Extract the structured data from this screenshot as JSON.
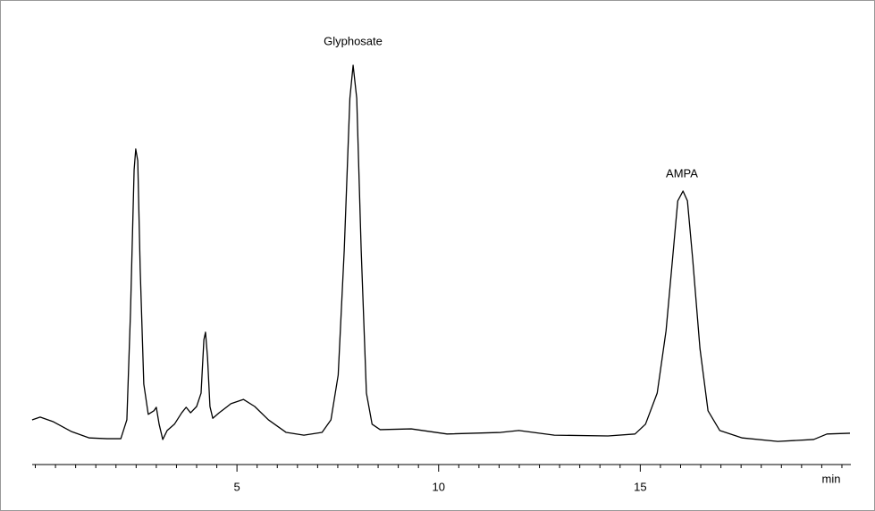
{
  "chart_data": {
    "type": "line",
    "annotations": [
      "Glyphosate",
      "AMPA"
    ],
    "xlabel": "min",
    "color": "#000000",
    "xlim": [
      -0.1,
      20.2
    ],
    "ylim": [
      0,
      100
    ],
    "xticks": [
      5,
      10,
      15
    ],
    "xminorticks": [
      0,
      0.5,
      1,
      1.5,
      2,
      2.5,
      3,
      3.5,
      4,
      4.5,
      5.5,
      6,
      6.5,
      7,
      7.5,
      8,
      8.5,
      9,
      9.5,
      10.5,
      11,
      11.5,
      12,
      12.5,
      13,
      13.5,
      14,
      14.5,
      15.5,
      16,
      16.5,
      17,
      17.5,
      18,
      18.5,
      19,
      19.5,
      20
    ],
    "x": [
      -0.08,
      0.12,
      0.45,
      0.9,
      1.34,
      1.78,
      2.12,
      2.27,
      2.36,
      2.45,
      2.49,
      2.54,
      2.6,
      2.69,
      2.8,
      2.94,
      3.0,
      3.07,
      3.16,
      3.27,
      3.45,
      3.63,
      3.74,
      3.85,
      4.0,
      4.11,
      4.18,
      4.22,
      4.27,
      4.33,
      4.4,
      4.56,
      4.85,
      5.16,
      5.44,
      5.78,
      6.22,
      6.66,
      7.11,
      7.33,
      7.51,
      7.66,
      7.8,
      7.88,
      7.97,
      8.08,
      8.21,
      8.35,
      8.55,
      9.32,
      10.21,
      11.54,
      11.99,
      12.87,
      14.2,
      14.87,
      15.13,
      15.42,
      15.64,
      15.8,
      15.93,
      16.06,
      16.17,
      16.3,
      16.48,
      16.68,
      16.97,
      17.53,
      18.41,
      19.3,
      19.63,
      20.2
    ],
    "y": [
      9.1,
      9.8,
      8.6,
      6.1,
      4.5,
      4.3,
      4.3,
      9.1,
      36.4,
      72.7,
      78.0,
      75.0,
      47.7,
      18.2,
      10.5,
      11.4,
      12.3,
      8.0,
      4.1,
      6.4,
      8.0,
      10.9,
      12.3,
      10.9,
      12.5,
      15.9,
      29.5,
      31.4,
      25.0,
      12.5,
      9.5,
      10.9,
      13.2,
      14.3,
      12.5,
      9.1,
      5.9,
      5.2,
      5.9,
      9.1,
      20.5,
      52.3,
      90.9,
      99.3,
      90.9,
      52.3,
      15.9,
      8.0,
      6.6,
      6.8,
      5.5,
      5.9,
      6.4,
      5.2,
      5.0,
      5.5,
      8.0,
      15.9,
      31.8,
      50.0,
      64.8,
      67.3,
      64.8,
      50.0,
      27.3,
      11.4,
      6.4,
      4.5,
      3.6,
      4.1,
      5.5,
      5.7
    ]
  }
}
